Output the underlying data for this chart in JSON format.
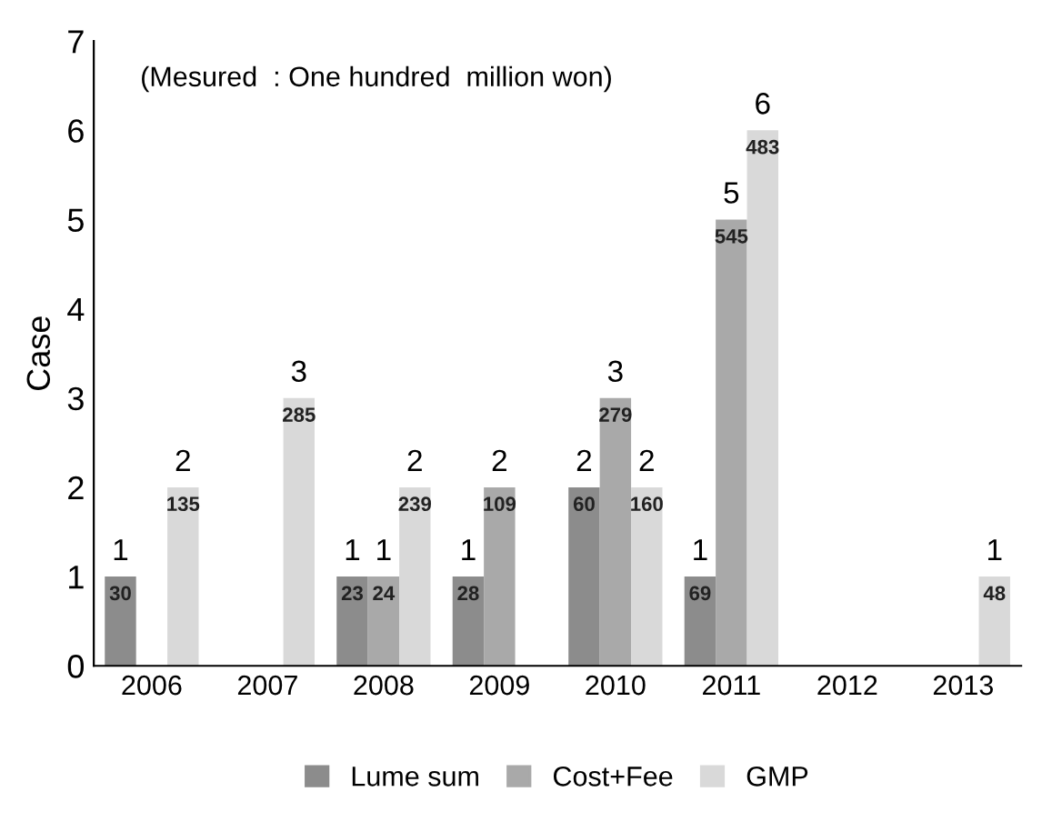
{
  "chart_data": {
    "type": "bar",
    "ylabel": "Case",
    "annotations": [
      "(Mesured  : One hundred  million won)",
      "30",
      "23",
      "28",
      "60",
      "69",
      "24",
      "109",
      "279",
      "545",
      "135",
      "285",
      "239",
      "160",
      "483",
      "48"
    ],
    "categories": [
      "2006",
      "2007",
      "2008",
      "2009",
      "2010",
      "2011",
      "2012",
      "2013"
    ],
    "series": [
      {
        "name": "Lume sum",
        "color": "#8c8c8c",
        "values": [
          1,
          null,
          1,
          1,
          2,
          1,
          null,
          null
        ]
      },
      {
        "name": "Cost+Fee",
        "color": "#a9a9a9",
        "values": [
          null,
          null,
          1,
          2,
          3,
          5,
          null,
          null
        ]
      },
      {
        "name": "GMP",
        "color": "#d9d9d9",
        "values": [
          2,
          3,
          2,
          null,
          2,
          6,
          null,
          1
        ]
      }
    ],
    "data_labels": true,
    "ylim": [
      0,
      7
    ],
    "yticks": [
      0,
      1,
      2,
      3,
      4,
      5,
      6,
      7
    ],
    "grid": false,
    "legend": "bottom"
  }
}
